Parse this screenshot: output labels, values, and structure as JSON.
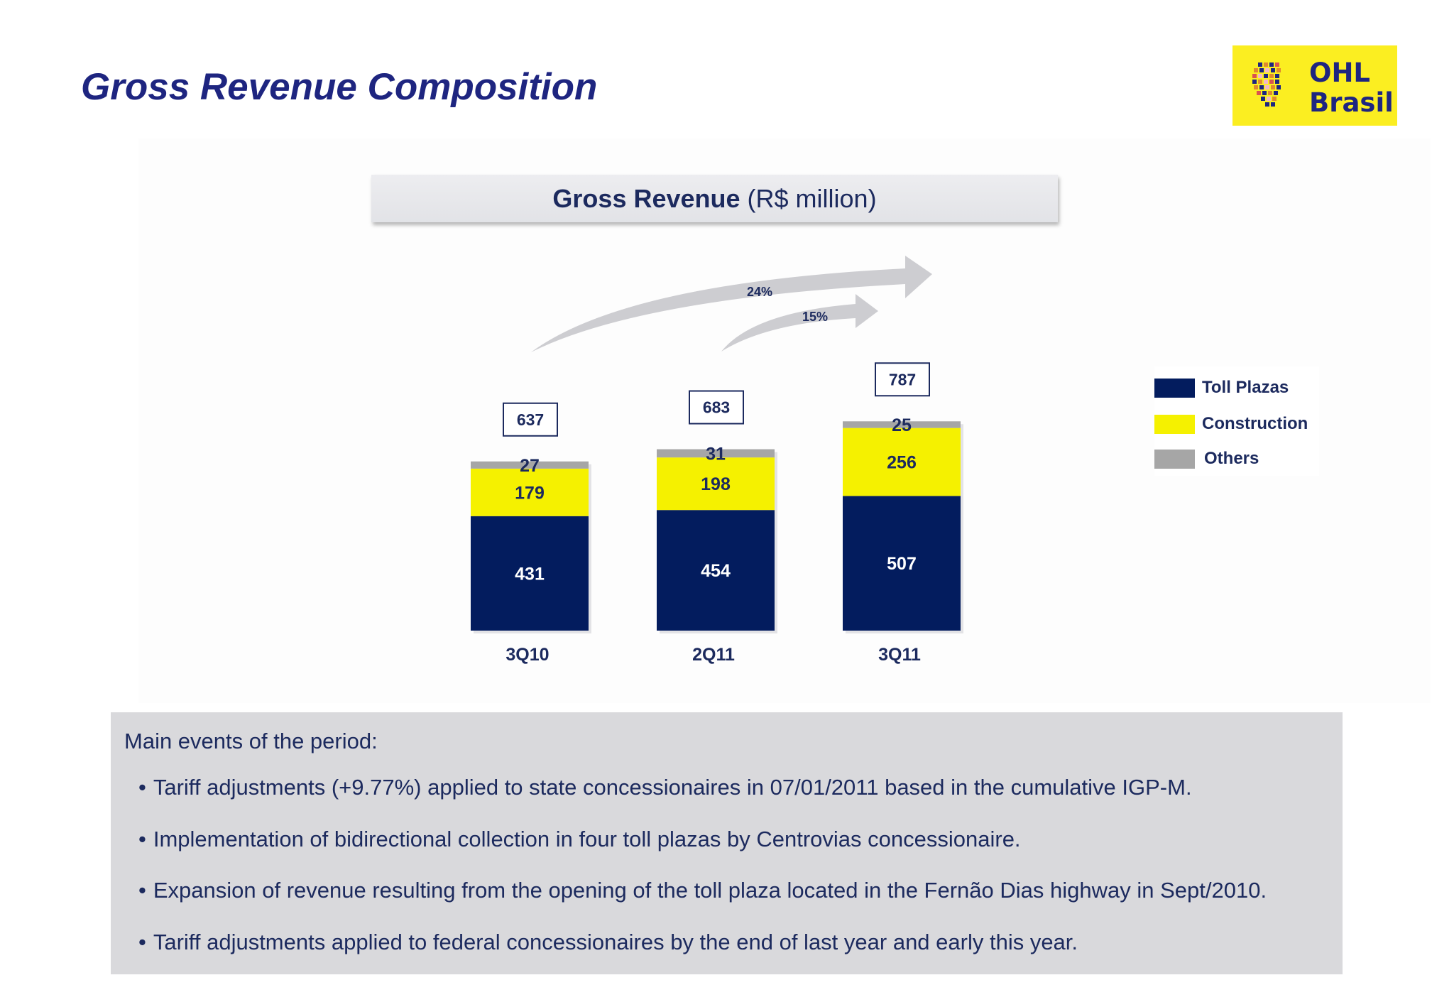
{
  "page": {
    "title": "Gross Revenue Composition"
  },
  "logo": {
    "line1": "OHL",
    "line2": "Brasil"
  },
  "chart_header": {
    "bold": "Gross Revenue",
    "unit": "(R$ million)"
  },
  "chart_data": {
    "type": "bar",
    "stacked": true,
    "title": "Gross Revenue (R$ million)",
    "categories": [
      "3Q10",
      "2Q11",
      "3Q11"
    ],
    "series": [
      {
        "name": "Toll Plazas",
        "values": [
          431,
          454,
          507
        ],
        "color": "#031c5e"
      },
      {
        "name": "Construction",
        "values": [
          179,
          198,
          256
        ],
        "color": "#f5f100"
      },
      {
        "name": "Others",
        "values": [
          27,
          31,
          25
        ],
        "color": "#a6a6a6"
      }
    ],
    "totals": [
      637,
      683,
      787
    ],
    "growth_annotations": [
      {
        "from": "3Q10",
        "to": "3Q11",
        "label": "24%"
      },
      {
        "from": "2Q11",
        "to": "3Q11",
        "label": "15%"
      }
    ],
    "legend_position": "right",
    "grid": false
  },
  "legend": {
    "items": [
      {
        "label": "Toll Plazas",
        "color": "#031c5e"
      },
      {
        "label": "Construction",
        "color": "#f5f100"
      },
      {
        "label": "Others",
        "color": "#a6a6a6"
      }
    ]
  },
  "events": {
    "heading": "Main events of the period:",
    "items": [
      "Tariff adjustments (+9.77%) applied to state concessionaires in 07/01/2011 based in the cumulative IGP-M.",
      "Implementation of bidirectional collection in four toll plazas by Centrovias concessionaire.",
      "Expansion of revenue resulting from the opening of the toll plaza located in the Fernão Dias highway in Sept/2010.",
      "Tariff adjustments applied to federal concessionaires by the end of last year and early this year."
    ]
  }
}
